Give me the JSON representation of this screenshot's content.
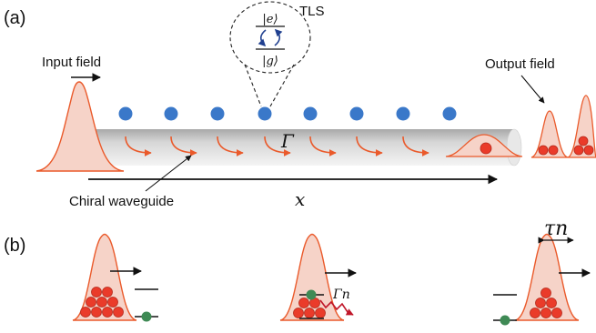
{
  "panels": {
    "a": {
      "label": "(a)"
    },
    "b": {
      "label": "(b)"
    }
  },
  "labels": {
    "input_field": "Input field",
    "output_field": "Output field",
    "tls": "TLS",
    "excited_state": "|e⟩",
    "ground_state": "|g⟩",
    "gamma": "Γ",
    "waveguide": "Chiral waveguide",
    "x_axis": "x",
    "tau_n": "τn",
    "gamma_n": "Γn"
  },
  "counts": {
    "atoms_on_waveguide": 8,
    "chiral_arrows": 8
  },
  "colors": {
    "pulse_fill": "#f6d3c8",
    "pulse_stroke": "#ea5a2b",
    "photon": "#ea3b2a",
    "atom_blue": "#3a78c9",
    "atom_green": "#3f8a55",
    "decay_arrow": "#c0172a",
    "waveguide_dark": "#9a9a9a",
    "waveguide_light": "#f2f2f2"
  }
}
